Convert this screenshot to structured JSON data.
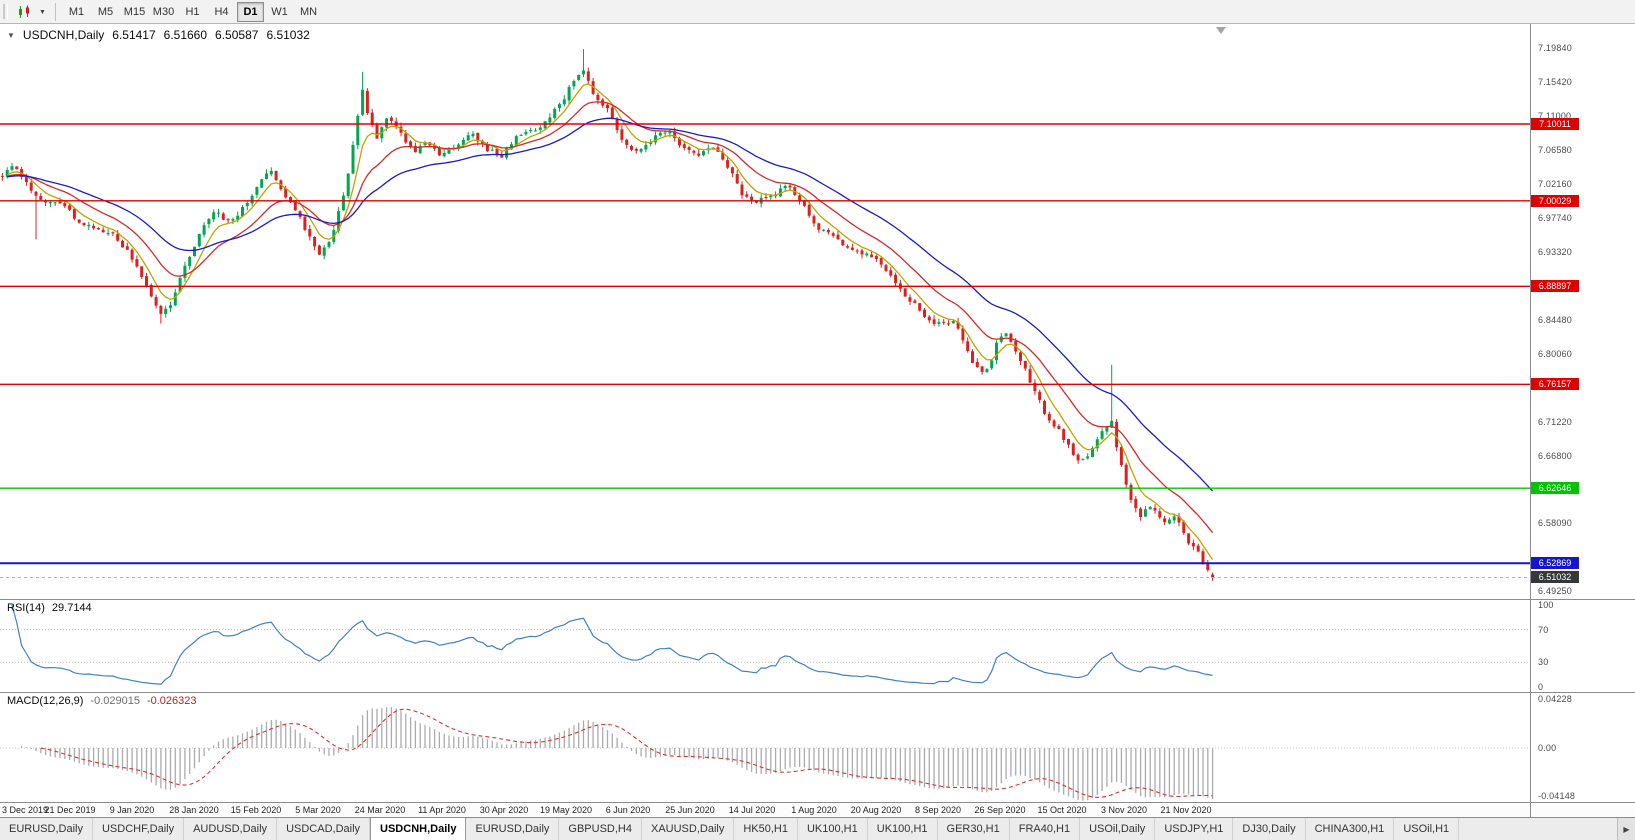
{
  "toolbar": {
    "dropdown_icon": "▼",
    "timeframes": [
      "M1",
      "M5",
      "M15",
      "M30",
      "H1",
      "H4",
      "D1",
      "W1",
      "MN"
    ],
    "active_timeframe": "D1"
  },
  "chart": {
    "title": {
      "collapse_icon": "▼",
      "symbol": "USDCNH,Daily",
      "open": "6.51417",
      "high": "6.51660",
      "low": "6.50587",
      "close": "6.51032"
    },
    "price_axis_ticks": [
      {
        "label": "7.19840",
        "price": 7.1984
      },
      {
        "label": "7.15420",
        "price": 7.1542
      },
      {
        "label": "7.11000",
        "price": 7.11
      },
      {
        "label": "7.06580",
        "price": 7.0658
      },
      {
        "label": "7.02160",
        "price": 7.0216
      },
      {
        "label": "6.97740",
        "price": 6.9774
      },
      {
        "label": "6.93320",
        "price": 6.9332
      },
      {
        "label": "6.84480",
        "price": 6.8448
      },
      {
        "label": "6.80060",
        "price": 6.8006
      },
      {
        "label": "6.71220",
        "price": 6.7122
      },
      {
        "label": "6.66800",
        "price": 6.668
      },
      {
        "label": "6.58090",
        "price": 6.5809
      },
      {
        "label": "6.49250",
        "price": 6.4925
      }
    ],
    "levels": [
      {
        "label": "7.10011",
        "price": 7.10011,
        "color": "#DF0000",
        "width": 1.4
      },
      {
        "label": "7.00029",
        "price": 7.00029,
        "color": "#DF0000",
        "width": 1.4
      },
      {
        "label": "6.88897",
        "price": 6.88897,
        "color": "#DF0000",
        "width": 1.4
      },
      {
        "label": "6.76157",
        "price": 6.76157,
        "color": "#DF0000",
        "width": 1.4
      },
      {
        "label": "6.62646",
        "price": 6.62646,
        "color": "#00C400",
        "width": 1.4
      },
      {
        "label": "6.52869",
        "price": 6.52869,
        "color": "#1414D2",
        "width": 2
      }
    ],
    "current_price": {
      "label": "6.51032",
      "price": 6.51032
    },
    "date_axis": [
      "3 Dec 2019",
      "21 Dec 2019",
      "9 Jan 2020",
      "28 Jan 2020",
      "15 Feb 2020",
      "5 Mar 2020",
      "24 Mar 2020",
      "11 Apr 2020",
      "30 Apr 2020",
      "19 May 2020",
      "6 Jun 2020",
      "25 Jun 2020",
      "14 Jul 2020",
      "1 Aug 2020",
      "20 Aug 2020",
      "8 Sep 2020",
      "26 Sep 2020",
      "15 Oct 2020",
      "3 Nov 2020",
      "21 Nov 2020"
    ]
  },
  "rsi_panel": {
    "name": "RSI(14)",
    "value": "29.7144",
    "guide_levels": [
      70,
      30
    ],
    "ticks": [
      {
        "label": "100",
        "v": 100
      },
      {
        "label": "70",
        "v": 70
      },
      {
        "label": "30",
        "v": 30
      },
      {
        "label": "0",
        "v": 0
      }
    ]
  },
  "macd_panel": {
    "name": "MACD(12,26,9)",
    "value_main": "-0.029015",
    "value_signal": "-0.026323",
    "ticks": [
      {
        "label": "0.04228",
        "v": 0.0423
      },
      {
        "label": "0.00",
        "v": 0
      },
      {
        "label": "-0.04148",
        "v": -0.0415
      }
    ]
  },
  "tabs": {
    "scroll_right": "▶",
    "active_index": 4,
    "items": [
      {
        "label": "EURUSD,Daily"
      },
      {
        "label": "USDCHF,Daily"
      },
      {
        "label": "AUDUSD,Daily"
      },
      {
        "label": "USDCAD,Daily"
      },
      {
        "label": "USDCNH,Daily"
      },
      {
        "label": "EURUSD,Daily"
      },
      {
        "label": "GBPUSD,H4"
      },
      {
        "label": "XAUUSD,Daily"
      },
      {
        "label": "HK50,H1"
      },
      {
        "label": "UK100,H1"
      },
      {
        "label": "UK100,H1"
      },
      {
        "label": "GER30,H1"
      },
      {
        "label": "FRA40,H1"
      },
      {
        "label": "USOil,Daily"
      },
      {
        "label": "USDJPY,H1"
      },
      {
        "label": "DJ30,Daily"
      },
      {
        "label": "CHINA300,H1"
      },
      {
        "label": "USOil,H1"
      }
    ]
  },
  "chart_data": {
    "type": "candlestick",
    "symbol": "USDCNH",
    "period": "Daily",
    "ylim": [
      6.4875,
      7.225
    ],
    "candle_count": 253,
    "candle_up_color": "#00A650",
    "candle_down_color": "#DC2020",
    "price_path": [
      [
        0.0,
        7.032
      ],
      [
        0.008,
        7.048
      ],
      [
        0.02,
        7.022
      ],
      [
        0.032,
        7.002
      ],
      [
        0.048,
        6.998
      ],
      [
        0.06,
        6.979
      ],
      [
        0.075,
        6.962
      ],
      [
        0.092,
        6.955
      ],
      [
        0.105,
        6.93
      ],
      [
        0.118,
        6.895
      ],
      [
        0.13,
        6.852
      ],
      [
        0.138,
        6.862
      ],
      [
        0.152,
        6.918
      ],
      [
        0.165,
        6.962
      ],
      [
        0.175,
        6.988
      ],
      [
        0.188,
        6.972
      ],
      [
        0.2,
        6.992
      ],
      [
        0.212,
        7.02
      ],
      [
        0.22,
        7.042
      ],
      [
        0.232,
        7.012
      ],
      [
        0.245,
        6.982
      ],
      [
        0.258,
        6.94
      ],
      [
        0.263,
        6.93
      ],
      [
        0.272,
        6.955
      ],
      [
        0.283,
        7.01
      ],
      [
        0.292,
        7.095
      ],
      [
        0.297,
        7.15
      ],
      [
        0.303,
        7.105
      ],
      [
        0.31,
        7.082
      ],
      [
        0.318,
        7.112
      ],
      [
        0.327,
        7.092
      ],
      [
        0.34,
        7.062
      ],
      [
        0.352,
        7.078
      ],
      [
        0.363,
        7.058
      ],
      [
        0.375,
        7.072
      ],
      [
        0.388,
        7.088
      ],
      [
        0.4,
        7.068
      ],
      [
        0.412,
        7.058
      ],
      [
        0.425,
        7.082
      ],
      [
        0.438,
        7.092
      ],
      [
        0.45,
        7.105
      ],
      [
        0.462,
        7.128
      ],
      [
        0.473,
        7.158
      ],
      [
        0.48,
        7.172
      ],
      [
        0.488,
        7.14
      ],
      [
        0.5,
        7.12
      ],
      [
        0.512,
        7.082
      ],
      [
        0.525,
        7.062
      ],
      [
        0.538,
        7.082
      ],
      [
        0.55,
        7.09
      ],
      [
        0.562,
        7.072
      ],
      [
        0.575,
        7.062
      ],
      [
        0.588,
        7.072
      ],
      [
        0.6,
        7.042
      ],
      [
        0.612,
        7.008
      ],
      [
        0.625,
        7.0
      ],
      [
        0.638,
        7.008
      ],
      [
        0.65,
        7.022
      ],
      [
        0.662,
        6.995
      ],
      [
        0.675,
        6.962
      ],
      [
        0.688,
        6.952
      ],
      [
        0.7,
        6.94
      ],
      [
        0.712,
        6.932
      ],
      [
        0.725,
        6.922
      ],
      [
        0.738,
        6.892
      ],
      [
        0.75,
        6.872
      ],
      [
        0.762,
        6.848
      ],
      [
        0.775,
        6.838
      ],
      [
        0.788,
        6.842
      ],
      [
        0.8,
        6.792
      ],
      [
        0.812,
        6.772
      ],
      [
        0.822,
        6.815
      ],
      [
        0.83,
        6.828
      ],
      [
        0.842,
        6.792
      ],
      [
        0.852,
        6.755
      ],
      [
        0.862,
        6.722
      ],
      [
        0.875,
        6.698
      ],
      [
        0.888,
        6.662
      ],
      [
        0.898,
        6.672
      ],
      [
        0.908,
        6.695
      ],
      [
        0.916,
        6.718
      ],
      [
        0.922,
        6.672
      ],
      [
        0.93,
        6.618
      ],
      [
        0.94,
        6.588
      ],
      [
        0.95,
        6.608
      ],
      [
        0.958,
        6.582
      ],
      [
        0.968,
        6.592
      ],
      [
        0.978,
        6.562
      ],
      [
        0.988,
        6.542
      ],
      [
        1.0,
        6.512
      ]
    ],
    "extremes": [
      {
        "f": 0.028,
        "low": 6.95
      },
      {
        "f": 0.13,
        "low": 6.8405
      },
      {
        "f": 0.297,
        "high": 7.168
      },
      {
        "f": 0.48,
        "high": 7.1975
      },
      {
        "f": 0.916,
        "high": 6.787
      }
    ],
    "last_candle": {
      "open": 6.51417,
      "high": 6.5166,
      "low": 6.50587,
      "close": 6.51032
    },
    "moving_averages": [
      {
        "period": 6,
        "color": "#BFA300"
      },
      {
        "period": 16,
        "color": "#D42A2A"
      },
      {
        "period": 34,
        "color": "#1B1BC8"
      }
    ],
    "horizontal_levels": [
      7.10011,
      7.00029,
      6.88897,
      6.76157,
      6.62646,
      6.52869
    ],
    "indicators": [
      {
        "name": "RSI",
        "period": 14,
        "current": 29.7144,
        "range": [
          0,
          100
        ]
      },
      {
        "name": "MACD",
        "fast_ema": 12,
        "slow_ema": 26,
        "signal": 9,
        "current_main": -0.029015,
        "current_signal": -0.026323,
        "scale": [
          -0.04148,
          0.04228
        ]
      }
    ]
  }
}
